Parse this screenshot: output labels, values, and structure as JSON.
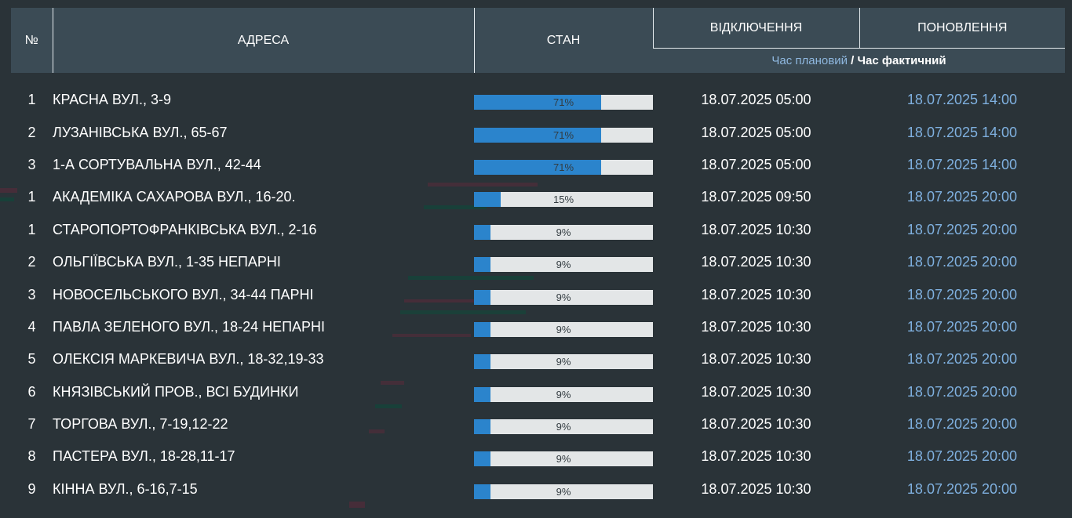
{
  "header": {
    "num": "№",
    "address": "АДРЕСА",
    "status": "СТАН",
    "outage": "ВІДКЛЮЧЕННЯ",
    "update": "ПОНОВЛЕННЯ",
    "time_planned": "Час плановий",
    "separator": " / ",
    "time_actual": "Час фактичний"
  },
  "colors": {
    "progress_fill": "#2b84cc",
    "progress_track": "#e3e6e7",
    "update_time": "#7fb0df",
    "header_bg": "#3b4b55",
    "page_bg": "#2a3338"
  },
  "rows": [
    {
      "num": "1",
      "address": "КРАСНА ВУЛ., 3-9",
      "progress": 71,
      "progress_label": "71%",
      "outage": "18.07.2025 05:00",
      "update": "18.07.2025 14:00"
    },
    {
      "num": "2",
      "address": "ЛУЗАНІВСЬКА ВУЛ., 65-67",
      "progress": 71,
      "progress_label": "71%",
      "outage": "18.07.2025 05:00",
      "update": "18.07.2025 14:00"
    },
    {
      "num": "3",
      "address": "1-А СОРТУВАЛЬНА ВУЛ., 42-44",
      "progress": 71,
      "progress_label": "71%",
      "outage": "18.07.2025 05:00",
      "update": "18.07.2025 14:00"
    },
    {
      "num": "1",
      "address": "АКАДЕМІКА САХАРОВА ВУЛ., 16-20.",
      "progress": 15,
      "progress_label": "15%",
      "outage": "18.07.2025 09:50",
      "update": "18.07.2025 20:00"
    },
    {
      "num": "1",
      "address": "СТАРОПОРТОФРАНКІВСЬКА ВУЛ., 2-16",
      "progress": 9,
      "progress_label": "9%",
      "outage": "18.07.2025 10:30",
      "update": "18.07.2025 20:00"
    },
    {
      "num": "2",
      "address": "ОЛЬГІЇВСЬКА ВУЛ., 1-35 НЕПАРНІ",
      "progress": 9,
      "progress_label": "9%",
      "outage": "18.07.2025 10:30",
      "update": "18.07.2025 20:00"
    },
    {
      "num": "3",
      "address": "НОВОСЕЛЬСЬКОГО ВУЛ., 34-44 ПАРНІ",
      "progress": 9,
      "progress_label": "9%",
      "outage": "18.07.2025 10:30",
      "update": "18.07.2025 20:00"
    },
    {
      "num": "4",
      "address": "ПАВЛА ЗЕЛЕНОГО ВУЛ., 18-24 НЕПАРНІ",
      "progress": 9,
      "progress_label": "9%",
      "outage": "18.07.2025 10:30",
      "update": "18.07.2025 20:00"
    },
    {
      "num": "5",
      "address": "ОЛЕКСІЯ МАРКЕВИЧА ВУЛ., 18-32,19-33",
      "progress": 9,
      "progress_label": "9%",
      "outage": "18.07.2025 10:30",
      "update": "18.07.2025 20:00"
    },
    {
      "num": "6",
      "address": "КНЯЗІВСЬКИЙ ПРОВ., ВСІ БУДИНКИ",
      "progress": 9,
      "progress_label": "9%",
      "outage": "18.07.2025 10:30",
      "update": "18.07.2025 20:00"
    },
    {
      "num": "7",
      "address": "ТОРГОВА ВУЛ., 7-19,12-22",
      "progress": 9,
      "progress_label": "9%",
      "outage": "18.07.2025 10:30",
      "update": "18.07.2025 20:00"
    },
    {
      "num": "8",
      "address": "ПАСТЕРА ВУЛ., 18-28,11-17",
      "progress": 9,
      "progress_label": "9%",
      "outage": "18.07.2025 10:30",
      "update": "18.07.2025 20:00"
    },
    {
      "num": "9",
      "address": "КІННА ВУЛ., 6-16,7-15",
      "progress": 9,
      "progress_label": "9%",
      "outage": "18.07.2025 10:30",
      "update": "18.07.2025 20:00"
    }
  ]
}
